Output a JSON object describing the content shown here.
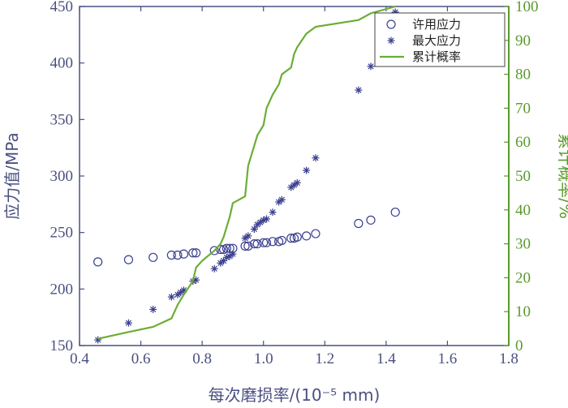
{
  "chart_data": {
    "type": "scatter",
    "xlabel": "每次磨损率/(10⁻⁵ mm)",
    "ylabel_left": "应力值/MPa",
    "ylabel_right": "累计概率/%",
    "xlim": [
      0.4,
      1.8
    ],
    "ylim_left": [
      150,
      450
    ],
    "ylim_right": [
      0,
      100
    ],
    "x_ticks": [
      "0.4",
      "0.6",
      "0.8",
      "1.0",
      "1.2",
      "1.4",
      "1.6",
      "1.8"
    ],
    "y_left_ticks": [
      "150",
      "200",
      "250",
      "300",
      "350",
      "400",
      "450"
    ],
    "y_right_ticks": [
      "0",
      "10",
      "20",
      "30",
      "40",
      "50",
      "60",
      "70",
      "80",
      "90",
      "100"
    ],
    "legend_position": "top-right",
    "grid": false,
    "colors": {
      "allowable": "#3b3f8f",
      "max": "#3b3f8f",
      "cumulative": "#6aae35"
    },
    "series": [
      {
        "name": "许用应力",
        "marker": "circle",
        "axis": "left",
        "points": [
          [
            0.46,
            224
          ],
          [
            0.56,
            226
          ],
          [
            0.64,
            228
          ],
          [
            0.7,
            230
          ],
          [
            0.72,
            230
          ],
          [
            0.74,
            231
          ],
          [
            0.77,
            232
          ],
          [
            0.78,
            232
          ],
          [
            0.84,
            234
          ],
          [
            0.86,
            235
          ],
          [
            0.87,
            235
          ],
          [
            0.88,
            236
          ],
          [
            0.89,
            236
          ],
          [
            0.9,
            236
          ],
          [
            0.94,
            238
          ],
          [
            0.95,
            238
          ],
          [
            0.97,
            240
          ],
          [
            0.98,
            240
          ],
          [
            1.0,
            241
          ],
          [
            1.01,
            241
          ],
          [
            1.03,
            242
          ],
          [
            1.05,
            242
          ],
          [
            1.06,
            243
          ],
          [
            1.09,
            245
          ],
          [
            1.1,
            245
          ],
          [
            1.11,
            246
          ],
          [
            1.14,
            247
          ],
          [
            1.17,
            249
          ],
          [
            1.31,
            258
          ],
          [
            1.35,
            261
          ],
          [
            1.43,
            268
          ]
        ]
      },
      {
        "name": "最大应力",
        "marker": "star",
        "axis": "left",
        "points": [
          [
            0.46,
            155
          ],
          [
            0.56,
            170
          ],
          [
            0.64,
            182
          ],
          [
            0.7,
            193
          ],
          [
            0.72,
            195
          ],
          [
            0.73,
            197
          ],
          [
            0.74,
            199
          ],
          [
            0.77,
            207
          ],
          [
            0.78,
            208
          ],
          [
            0.84,
            218
          ],
          [
            0.86,
            223
          ],
          [
            0.87,
            225
          ],
          [
            0.88,
            228
          ],
          [
            0.89,
            229
          ],
          [
            0.9,
            231
          ],
          [
            0.94,
            245
          ],
          [
            0.95,
            247
          ],
          [
            0.97,
            253
          ],
          [
            0.98,
            257
          ],
          [
            0.99,
            259
          ],
          [
            1.0,
            261
          ],
          [
            1.01,
            262
          ],
          [
            1.03,
            268
          ],
          [
            1.05,
            277
          ],
          [
            1.06,
            279
          ],
          [
            1.09,
            290
          ],
          [
            1.1,
            292
          ],
          [
            1.11,
            294
          ],
          [
            1.14,
            305
          ],
          [
            1.17,
            316
          ],
          [
            1.31,
            376
          ],
          [
            1.35,
            397
          ],
          [
            1.43,
            445
          ]
        ]
      },
      {
        "name": "累计概率",
        "marker": "line",
        "axis": "right",
        "points": [
          [
            0.46,
            2
          ],
          [
            0.56,
            4
          ],
          [
            0.64,
            5.5
          ],
          [
            0.7,
            8
          ],
          [
            0.72,
            12
          ],
          [
            0.74,
            15
          ],
          [
            0.77,
            19
          ],
          [
            0.78,
            23
          ],
          [
            0.8,
            25
          ],
          [
            0.84,
            28
          ],
          [
            0.86,
            30
          ],
          [
            0.87,
            32
          ],
          [
            0.88,
            35
          ],
          [
            0.89,
            38
          ],
          [
            0.9,
            42
          ],
          [
            0.94,
            44
          ],
          [
            0.95,
            53
          ],
          [
            0.96,
            56
          ],
          [
            0.97,
            59
          ],
          [
            0.98,
            62
          ],
          [
            1.0,
            65
          ],
          [
            1.01,
            70
          ],
          [
            1.03,
            74
          ],
          [
            1.05,
            77
          ],
          [
            1.06,
            80
          ],
          [
            1.09,
            82
          ],
          [
            1.1,
            86
          ],
          [
            1.11,
            88
          ],
          [
            1.14,
            92
          ],
          [
            1.17,
            94
          ],
          [
            1.31,
            96
          ],
          [
            1.35,
            98
          ],
          [
            1.43,
            100
          ]
        ]
      }
    ]
  }
}
